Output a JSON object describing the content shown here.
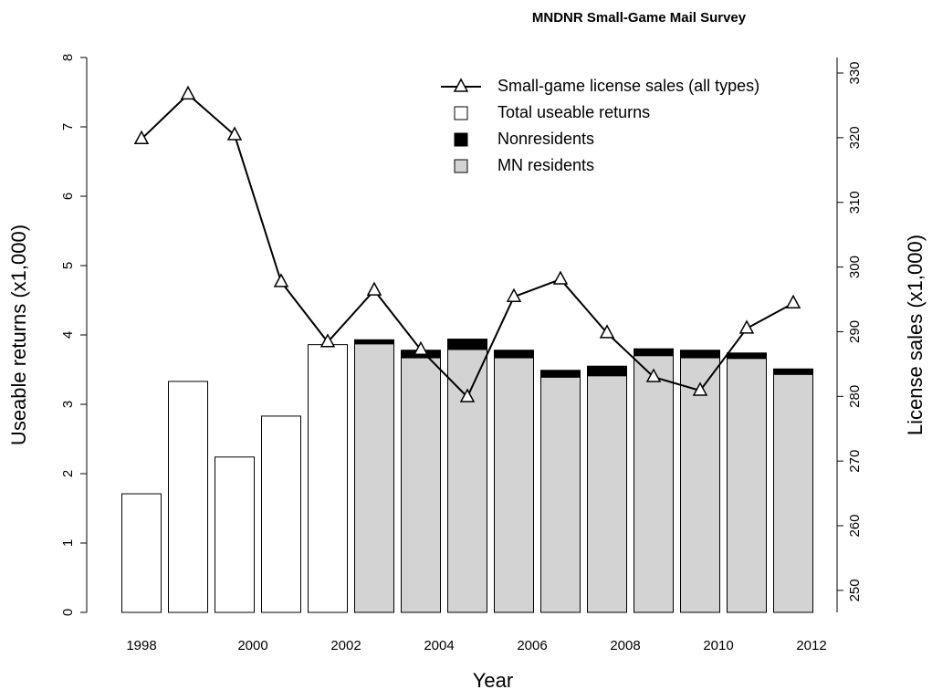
{
  "chart_data": {
    "type": "bar",
    "title": "MNDNR Small-Game Mail Survey",
    "x_label": "Year",
    "y_label": "Useable returns (x1,000)",
    "y2_label": "License sales (x1,000)",
    "categories": [
      "1998",
      null,
      "2000",
      null,
      "2002",
      null,
      "2004",
      null,
      "2006",
      null,
      "2008",
      null,
      "2010",
      null,
      "2012"
    ],
    "series": [
      {
        "name": "Small-game license sales (all types)",
        "type": "line",
        "axis": "y2",
        "color": "#000000",
        "values": [
          319.8,
          326.7,
          320.4,
          297.7,
          288.4,
          296.4,
          287.2,
          279.9,
          295.4,
          298.1,
          289.8,
          283.0,
          280.9,
          290.5,
          294.4
        ]
      },
      {
        "name": "Total useable returns",
        "type": "bar",
        "color": "#ffffff",
        "values": [
          1.71,
          3.33,
          2.24,
          2.83,
          3.86,
          null,
          null,
          null,
          null,
          null,
          null,
          null,
          null,
          null,
          null
        ]
      },
      {
        "name": "Nonresidents",
        "type": "stack",
        "color": "#000000",
        "values": [
          null,
          null,
          null,
          null,
          null,
          0.06,
          0.11,
          0.15,
          0.11,
          0.1,
          0.14,
          0.1,
          0.11,
          0.08,
          0.08
        ]
      },
      {
        "name": "MN residents",
        "type": "stack",
        "color": "#d3d3d3",
        "values": [
          null,
          null,
          null,
          null,
          null,
          3.87,
          3.67,
          3.79,
          3.67,
          3.39,
          3.41,
          3.7,
          3.67,
          3.66,
          3.43
        ]
      }
    ],
    "ylim": [
      0,
      8
    ],
    "yticks": [
      0,
      1,
      2,
      3,
      4,
      5,
      6,
      7,
      8
    ],
    "y2lim": [
      246.6,
      332.4
    ],
    "y2ticks": [
      250,
      260,
      270,
      280,
      290,
      300,
      310,
      320,
      330
    ],
    "legend": "top-right"
  }
}
